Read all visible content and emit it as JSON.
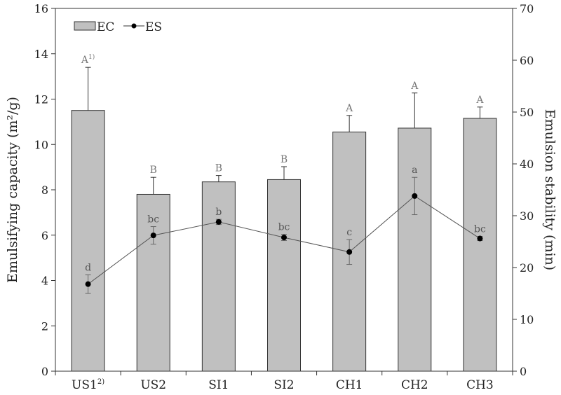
{
  "chart_data": {
    "type": "bar+line",
    "categories": [
      "US1",
      "US2",
      "SI1",
      "SI2",
      "CH1",
      "CH2",
      "CH3"
    ],
    "category_footnotes": {
      "US1": "2)"
    },
    "xlabel": "",
    "ylabel": "Emulsifying capacity (m²/g)",
    "y2label": "Emulsion stability (min)",
    "ylim": [
      0,
      16
    ],
    "yticks": [
      0,
      2,
      4,
      6,
      8,
      10,
      12,
      14,
      16
    ],
    "y2lim": [
      0,
      70
    ],
    "y2ticks": [
      0,
      10,
      20,
      30,
      40,
      50,
      60,
      70
    ],
    "legend": {
      "placement": "top-left",
      "entries": [
        "EC",
        "ES"
      ]
    },
    "grid": false,
    "colors": {
      "bar": "#c0c0c0",
      "line": "#555555",
      "marker": "#000000"
    },
    "series": [
      {
        "name": "EC",
        "type": "bar",
        "axis": "left",
        "values": [
          11.5,
          7.8,
          8.35,
          8.45,
          10.55,
          10.72,
          11.15
        ],
        "errors": [
          1.9,
          0.75,
          0.28,
          0.57,
          0.73,
          1.55,
          0.5
        ],
        "labels": [
          "A",
          "B",
          "B",
          "B",
          "A",
          "A",
          "A"
        ],
        "label_footnotes": {
          "0": "1)"
        }
      },
      {
        "name": "ES",
        "type": "line",
        "axis": "right",
        "values": [
          16.8,
          26.2,
          28.8,
          25.8,
          23.0,
          33.8,
          25.6
        ],
        "errors": [
          1.8,
          1.7,
          0.5,
          0.6,
          2.4,
          3.6,
          0.4
        ],
        "labels": [
          "d",
          "bc",
          "b",
          "bc",
          "c",
          "a",
          "bc"
        ]
      }
    ]
  }
}
